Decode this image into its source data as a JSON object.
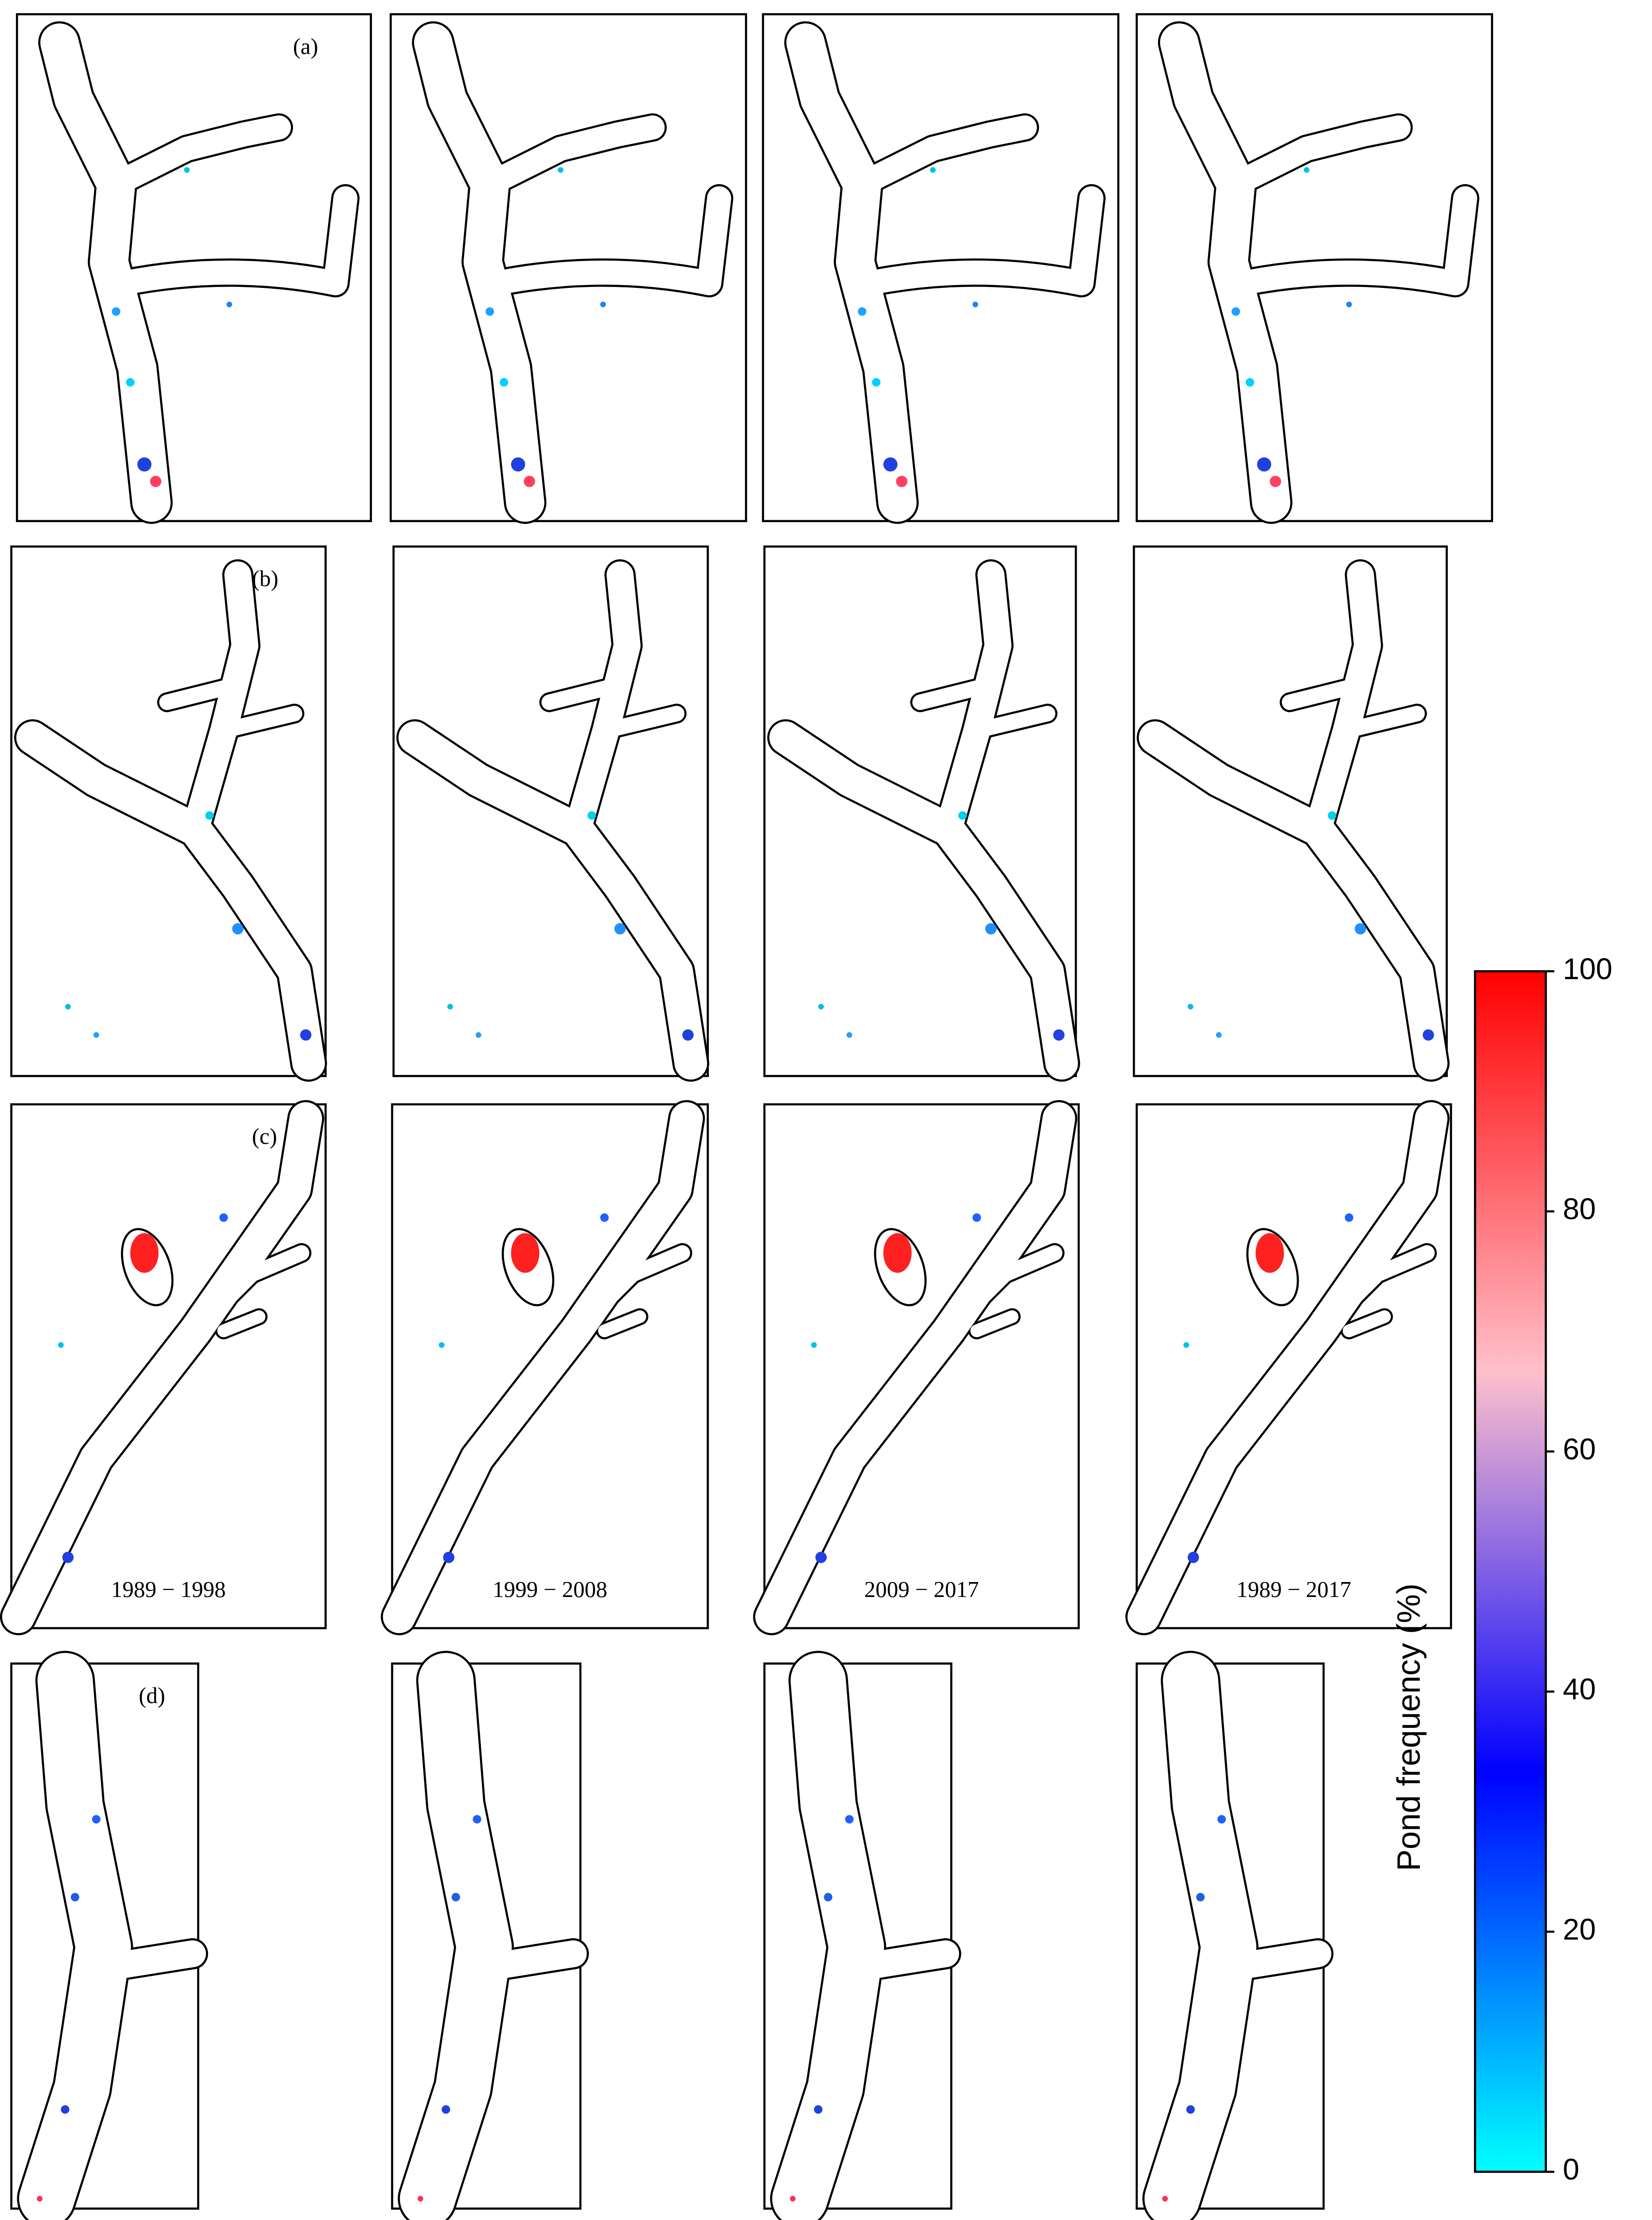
{
  "panel_labels": [
    "(a)",
    "(b)",
    "(c)",
    "(d)"
  ],
  "period_labels": [
    "1989 − 1998",
    "1999 − 2008",
    "2009 − 2017",
    "1989 − 2017"
  ],
  "colorbar": {
    "label": "Pond frequency (%)",
    "lim": [
      0,
      100
    ],
    "ticks": [
      0,
      20,
      40,
      60,
      80,
      100
    ],
    "colors": [
      "#00ffff",
      "#0000ff",
      "#ffc0cb",
      "#ff0000"
    ]
  }
}
